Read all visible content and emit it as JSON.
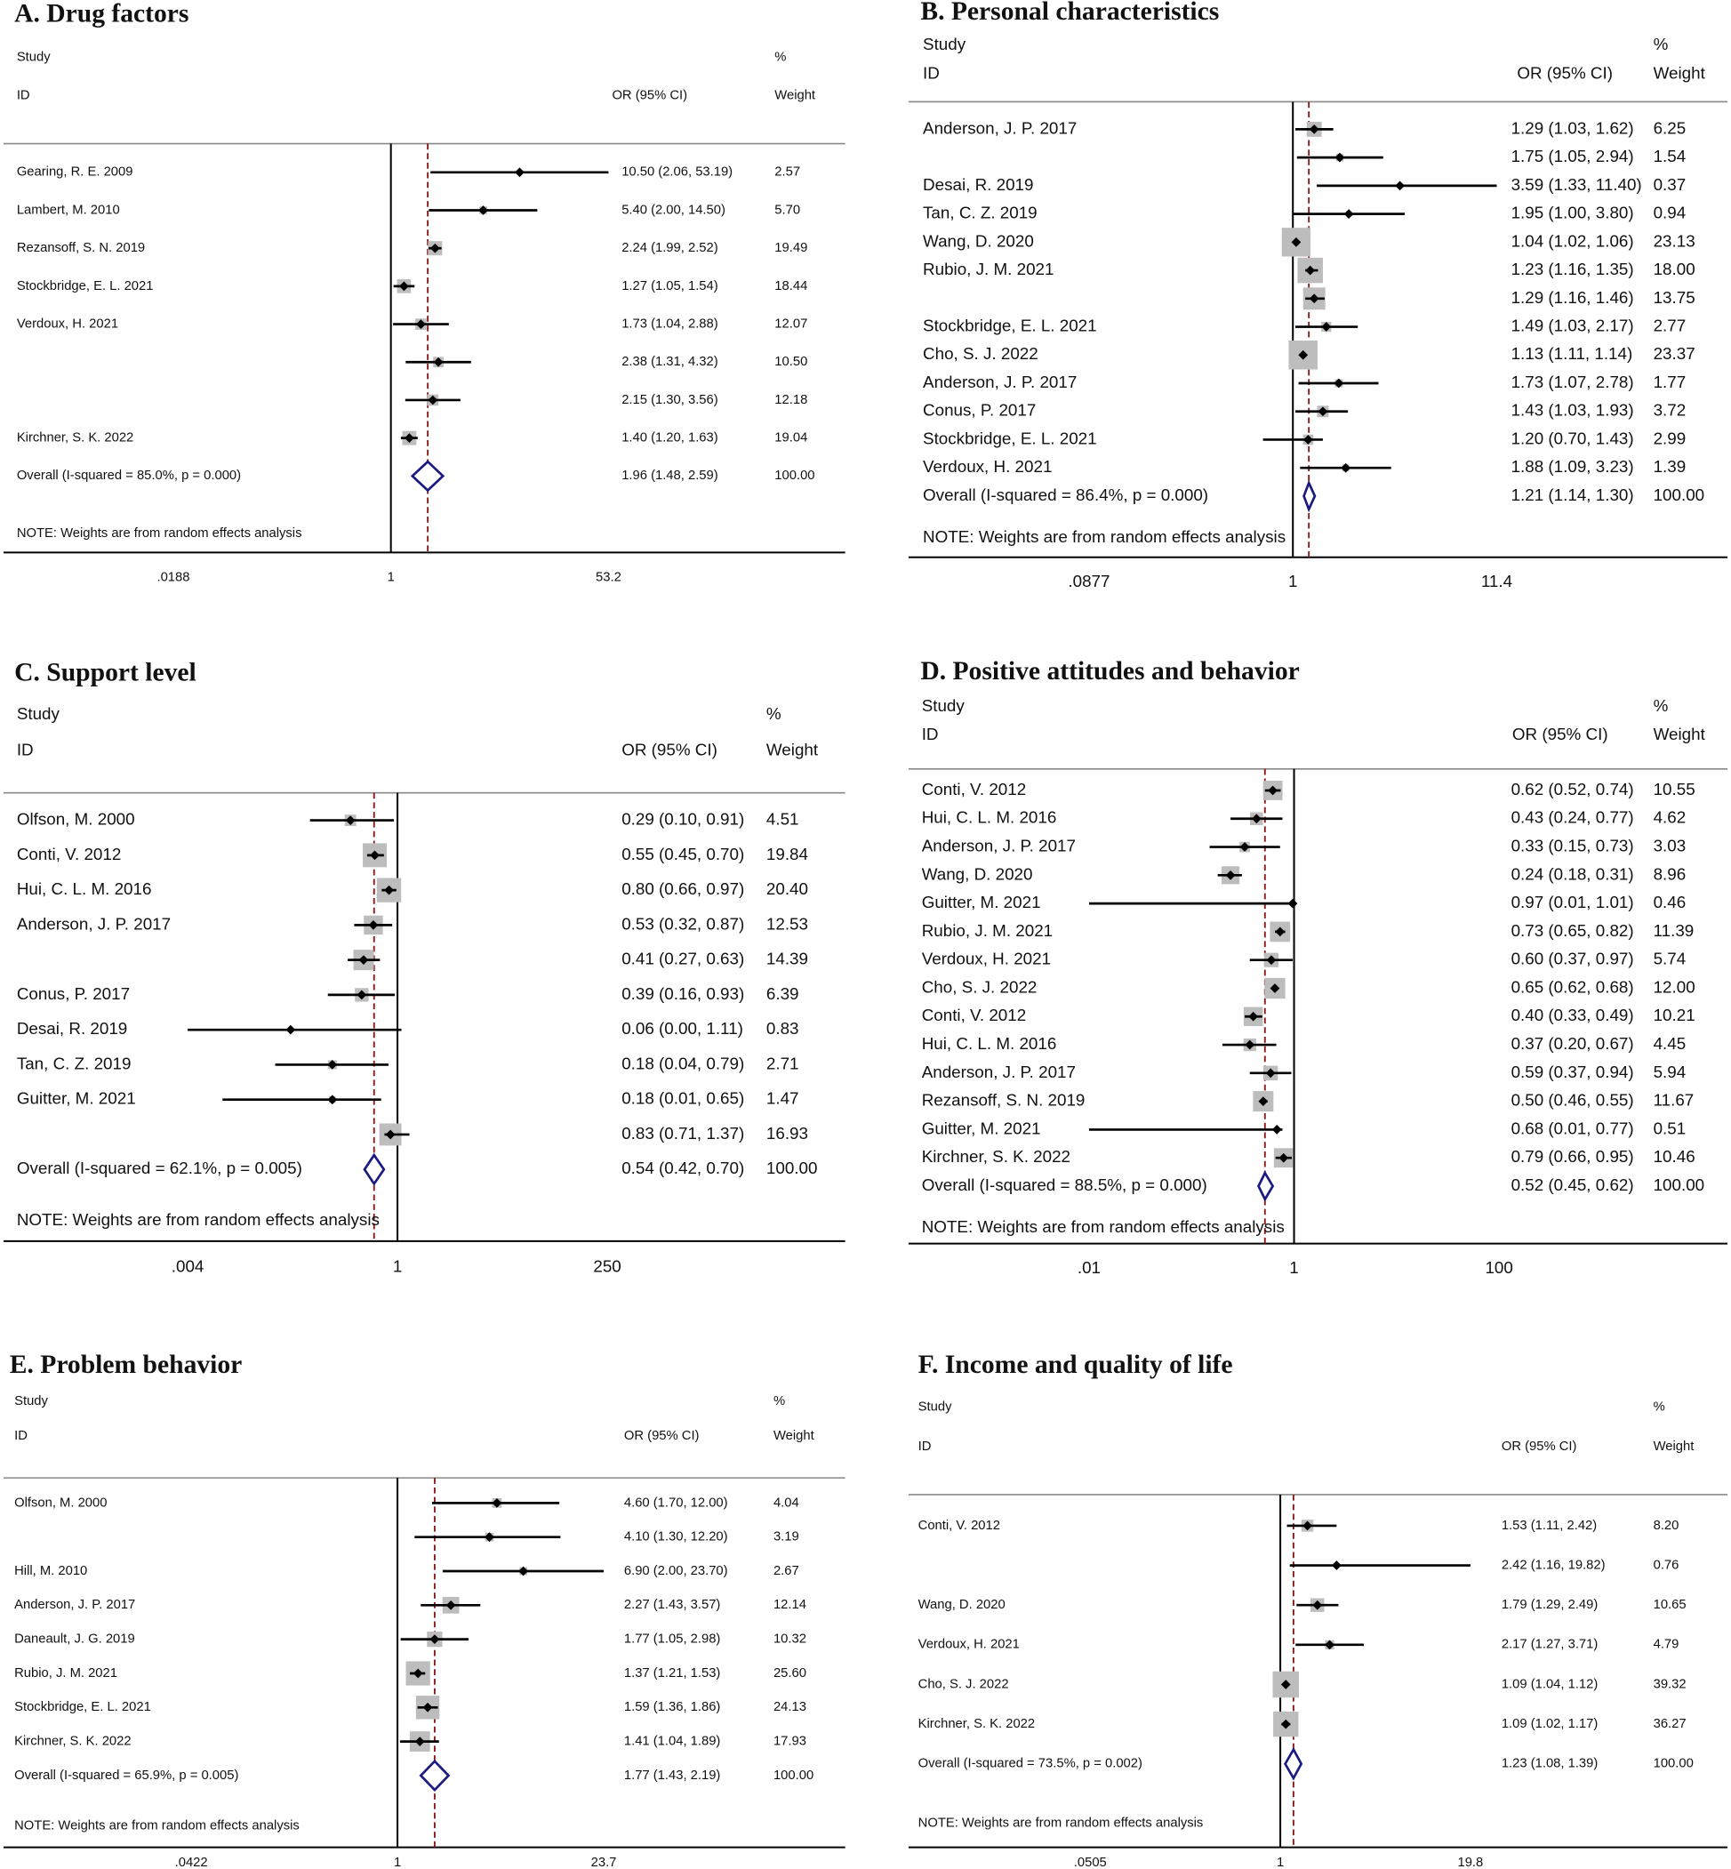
{
  "chart_data": [
    {
      "type": "forest",
      "title": "A. Drug factors",
      "log_scale": true,
      "study_header": "Study",
      "id_header": "ID",
      "ci_header": "OR (95% CI)",
      "pct_header": "%",
      "weight_header": "Weight",
      "studies": [
        "Gearing, R. E. 2009",
        "Lambert, M. 2010",
        "Rezansoff, S. N. 2019",
        "Stockbridge, E. L. 2021",
        "Verdoux, H. 2021",
        null,
        null,
        "Kirchner, S. K. 2022"
      ],
      "values": [
        10.5,
        5.4,
        2.24,
        1.27,
        1.73,
        2.38,
        2.15,
        1.4
      ],
      "lower": [
        2.06,
        2.0,
        1.99,
        1.05,
        1.04,
        1.31,
        1.3,
        1.2
      ],
      "upper": [
        53.19,
        14.5,
        2.52,
        1.54,
        2.88,
        4.32,
        3.56,
        1.63
      ],
      "weights": [
        2.57,
        5.7,
        19.49,
        18.44,
        12.07,
        10.5,
        12.18,
        19.04
      ],
      "ci_labels": [
        "10.50 (2.06, 53.19)",
        "5.40 (2.00, 14.50)",
        "2.24 (1.99, 2.52)",
        "1.27 (1.05, 1.54)",
        "1.73 (1.04, 2.88)",
        "2.38 (1.31, 4.32)",
        "2.15 (1.30, 3.56)",
        "1.40 (1.20, 1.63)"
      ],
      "weight_labels": [
        "2.57",
        "5.70",
        "19.49",
        "18.44",
        "12.07",
        "10.50",
        "12.18",
        "19.04"
      ],
      "overall": {
        "label": "Overall  (I-squared = 85.0%, p = 0.000)",
        "value": 1.96,
        "lower": 1.48,
        "upper": 2.59,
        "ci_label": "1.96 (1.48, 2.59)",
        "weight": 100,
        "weight_label": "100.00"
      },
      "note": "NOTE: Weights are from random effects analysis",
      "xlim": [
        0.0188,
        53.2
      ],
      "xticks": [
        {
          "value": 0.0188,
          "label": ".0188"
        },
        1,
        53.2
      ]
    },
    {
      "type": "forest",
      "title": "B. Personal characteristics",
      "log_scale": true,
      "study_header": "Study",
      "id_header": "ID",
      "ci_header": "OR (95% CI)",
      "pct_header": "%",
      "weight_header": "Weight",
      "studies": [
        "Anderson, J. P. 2017",
        null,
        "Desai, R. 2019",
        "Tan, C. Z. 2019",
        "Wang, D. 2020",
        "Rubio, J. M. 2021",
        null,
        "Stockbridge, E. L. 2021",
        "Cho, S. J. 2022",
        "Anderson, J. P. 2017",
        "Conus, P. 2017",
        "Stockbridge, E. L. 2021",
        "Verdoux, H. 2021"
      ],
      "values": [
        1.29,
        1.75,
        3.59,
        1.95,
        1.04,
        1.23,
        1.29,
        1.49,
        1.13,
        1.73,
        1.43,
        1.2,
        1.88
      ],
      "lower": [
        1.03,
        1.05,
        1.33,
        1.0,
        1.02,
        1.16,
        1.16,
        1.03,
        1.11,
        1.07,
        1.03,
        0.7,
        1.09
      ],
      "upper": [
        1.62,
        2.94,
        11.4,
        3.8,
        1.06,
        1.35,
        1.46,
        2.17,
        1.14,
        2.78,
        1.93,
        1.43,
        3.23
      ],
      "weights": [
        6.25,
        1.54,
        0.37,
        0.94,
        23.13,
        18.0,
        13.75,
        2.77,
        23.37,
        1.77,
        3.72,
        2.99,
        1.39
      ],
      "ci_labels": [
        "1.29 (1.03, 1.62)",
        "1.75 (1.05, 2.94)",
        "3.59 (1.33, 11.40)",
        "1.95 (1.00, 3.80)",
        "1.04 (1.02, 1.06)",
        "1.23 (1.16, 1.35)",
        "1.29 (1.16, 1.46)",
        "1.49 (1.03, 2.17)",
        "1.13 (1.11, 1.14)",
        "1.73 (1.07, 2.78)",
        "1.43 (1.03, 1.93)",
        "1.20 (0.70, 1.43)",
        "1.88 (1.09, 3.23)"
      ],
      "weight_labels": [
        "6.25",
        "1.54",
        "0.37",
        "0.94",
        "23.13",
        "18.00",
        "13.75",
        "2.77",
        "23.37",
        "1.77",
        "3.72",
        "2.99",
        "1.39"
      ],
      "overall": {
        "label": "Overall  (I-squared = 86.4%, p = 0.000)",
        "value": 1.21,
        "lower": 1.14,
        "upper": 1.3,
        "ci_label": "1.21 (1.14, 1.30)",
        "weight": 100,
        "weight_label": "100.00"
      },
      "note": "NOTE: Weights are from random effects analysis",
      "xlim": [
        0.0877,
        11.4
      ],
      "xticks": [
        {
          "value": 0.0877,
          "label": ".0877"
        },
        1,
        11.4
      ]
    },
    {
      "type": "forest",
      "title": "C. Support level",
      "log_scale": true,
      "study_header": "Study",
      "id_header": "ID",
      "ci_header": "OR (95% CI)",
      "pct_header": "%",
      "weight_header": "Weight",
      "studies": [
        "Olfson, M. 2000",
        "Conti, V. 2012",
        "Hui, C. L. M. 2016",
        "Anderson, J. P. 2017",
        null,
        "Conus, P. 2017",
        "Desai, R. 2019",
        "Tan, C. Z. 2019",
        "Guitter, M. 2021",
        null
      ],
      "values": [
        0.29,
        0.55,
        0.8,
        0.53,
        0.41,
        0.39,
        0.06,
        0.18,
        0.18,
        0.83
      ],
      "lower": [
        0.1,
        0.45,
        0.66,
        0.32,
        0.27,
        0.16,
        0.0,
        0.04,
        0.01,
        0.71
      ],
      "upper": [
        0.91,
        0.7,
        0.97,
        0.87,
        0.63,
        0.93,
        1.11,
        0.79,
        0.65,
        1.37
      ],
      "weights": [
        4.51,
        19.84,
        20.4,
        12.53,
        14.39,
        6.39,
        0.83,
        2.71,
        1.47,
        16.93
      ],
      "ci_labels": [
        "0.29 (0.10, 0.91)",
        "0.55 (0.45, 0.70)",
        "0.80 (0.66, 0.97)",
        "0.53 (0.32, 0.87)",
        "0.41 (0.27, 0.63)",
        "0.39 (0.16, 0.93)",
        "0.06 (0.00, 1.11)",
        "0.18 (0.04, 0.79)",
        "0.18 (0.01, 0.65)",
        "0.83 (0.71, 1.37)"
      ],
      "weight_labels": [
        "4.51",
        "19.84",
        "20.40",
        "12.53",
        "14.39",
        "6.39",
        "0.83",
        "2.71",
        "1.47",
        "16.93"
      ],
      "overall": {
        "label": "Overall  (I-squared = 62.1%, p = 0.005)",
        "value": 0.54,
        "lower": 0.42,
        "upper": 0.7,
        "ci_label": "0.54 (0.42, 0.70)",
        "weight": 100,
        "weight_label": "100.00"
      },
      "note": "NOTE: Weights are from random effects analysis",
      "xlim": [
        0.004,
        250
      ],
      "xticks": [
        {
          "value": 0.004,
          "label": ".004"
        },
        1,
        250
      ]
    },
    {
      "type": "forest",
      "title": "D. Positive attitudes and behavior",
      "log_scale": true,
      "study_header": "Study",
      "id_header": "ID",
      "ci_header": "OR (95% CI)",
      "pct_header": "%",
      "weight_header": "Weight",
      "studies": [
        "Conti, V. 2012",
        "Hui, C. L. M. 2016",
        "Anderson, J. P. 2017",
        "Wang, D. 2020",
        "Guitter, M. 2021",
        "Rubio, J. M. 2021",
        "Verdoux, H. 2021",
        "Cho, S. J. 2022",
        "Conti, V. 2012",
        "Hui, C. L. M. 2016",
        "Anderson, J. P. 2017",
        "Rezansoff, S. N. 2019",
        "Guitter, M. 2021",
        "Kirchner, S. K. 2022"
      ],
      "values": [
        0.62,
        0.43,
        0.33,
        0.24,
        0.97,
        0.73,
        0.6,
        0.65,
        0.4,
        0.37,
        0.59,
        0.5,
        0.68,
        0.79
      ],
      "lower": [
        0.52,
        0.24,
        0.15,
        0.18,
        0.01,
        0.65,
        0.37,
        0.62,
        0.33,
        0.2,
        0.37,
        0.46,
        0.01,
        0.66
      ],
      "upper": [
        0.74,
        0.77,
        0.73,
        0.31,
        1.01,
        0.82,
        0.97,
        0.68,
        0.49,
        0.67,
        0.94,
        0.55,
        0.77,
        0.95
      ],
      "weights": [
        10.55,
        4.62,
        3.03,
        8.96,
        0.46,
        11.39,
        5.74,
        12.0,
        10.21,
        4.45,
        5.94,
        11.67,
        0.51,
        10.46
      ],
      "ci_labels": [
        "0.62 (0.52, 0.74)",
        "0.43 (0.24, 0.77)",
        "0.33 (0.15, 0.73)",
        "0.24 (0.18, 0.31)",
        "0.97 (0.01, 1.01)",
        "0.73 (0.65, 0.82)",
        "0.60 (0.37, 0.97)",
        "0.65 (0.62, 0.68)",
        "0.40 (0.33, 0.49)",
        "0.37 (0.20, 0.67)",
        "0.59 (0.37, 0.94)",
        "0.50 (0.46, 0.55)",
        "0.68 (0.01, 0.77)",
        "0.79 (0.66, 0.95)"
      ],
      "weight_labels": [
        "10.55",
        "4.62",
        "3.03",
        "8.96",
        "0.46",
        "11.39",
        "5.74",
        "12.00",
        "10.21",
        "4.45",
        "5.94",
        "11.67",
        "0.51",
        "10.46"
      ],
      "overall": {
        "label": "Overall  (I-squared = 88.5%, p = 0.000)",
        "value": 0.52,
        "lower": 0.45,
        "upper": 0.62,
        "ci_label": "0.52 (0.45, 0.62)",
        "weight": 100,
        "weight_label": "100.00"
      },
      "note": "NOTE: Weights are from random effects analysis",
      "xlim": [
        0.01,
        100
      ],
      "xticks": [
        {
          "value": 0.01,
          "label": ".01"
        },
        1,
        100
      ]
    },
    {
      "type": "forest",
      "title": "E. Problem behavior",
      "log_scale": true,
      "study_header": "Study",
      "id_header": "ID",
      "ci_header": "OR (95% CI)",
      "pct_header": "%",
      "weight_header": "Weight",
      "studies": [
        "Olfson, M. 2000",
        null,
        "Hill, M. 2010",
        "Anderson, J. P. 2017",
        "Daneault, J. G. 2019",
        "Rubio, J. M. 2021",
        "Stockbridge, E. L. 2021",
        "Kirchner, S. K. 2022"
      ],
      "values": [
        4.6,
        4.1,
        6.9,
        2.27,
        1.77,
        1.37,
        1.59,
        1.41
      ],
      "lower": [
        1.7,
        1.3,
        2.0,
        1.43,
        1.05,
        1.21,
        1.36,
        1.04
      ],
      "upper": [
        12.0,
        12.2,
        23.7,
        3.57,
        2.98,
        1.53,
        1.86,
        1.89
      ],
      "weights": [
        4.04,
        3.19,
        2.67,
        12.14,
        10.32,
        25.6,
        24.13,
        17.93
      ],
      "ci_labels": [
        "4.60 (1.70, 12.00)",
        "4.10 (1.30, 12.20)",
        "6.90 (2.00, 23.70)",
        "2.27 (1.43, 3.57)",
        "1.77 (1.05, 2.98)",
        "1.37 (1.21, 1.53)",
        "1.59 (1.36, 1.86)",
        "1.41 (1.04, 1.89)"
      ],
      "weight_labels": [
        "4.04",
        "3.19",
        "2.67",
        "12.14",
        "10.32",
        "25.60",
        "24.13",
        "17.93"
      ],
      "overall": {
        "label": "Overall  (I-squared = 65.9%, p = 0.005)",
        "value": 1.77,
        "lower": 1.43,
        "upper": 2.19,
        "ci_label": "1.77 (1.43, 2.19)",
        "weight": 100,
        "weight_label": "100.00"
      },
      "note": "NOTE: Weights are from random effects analysis",
      "xlim": [
        0.0422,
        23.7
      ],
      "xticks": [
        {
          "value": 0.0422,
          "label": ".0422"
        },
        1,
        23.7
      ]
    },
    {
      "type": "forest",
      "title": "F. Income and quality of life",
      "log_scale": true,
      "study_header": "Study",
      "id_header": "ID",
      "ci_header": "OR (95% CI)",
      "pct_header": "%",
      "weight_header": "Weight",
      "studies": [
        "Conti, V. 2012",
        null,
        "Wang, D. 2020",
        "Verdoux, H. 2021",
        "Cho, S. J. 2022",
        "Kirchner, S. K. 2022"
      ],
      "values": [
        1.53,
        2.42,
        1.79,
        2.17,
        1.09,
        1.09
      ],
      "lower": [
        1.11,
        1.16,
        1.29,
        1.27,
        1.04,
        1.02
      ],
      "upper": [
        2.42,
        19.82,
        2.49,
        3.71,
        1.12,
        1.17
      ],
      "weights": [
        8.2,
        0.76,
        10.65,
        4.79,
        39.32,
        36.27
      ],
      "ci_labels": [
        "1.53 (1.11, 2.42)",
        "2.42 (1.16, 19.82)",
        "1.79 (1.29, 2.49)",
        "2.17 (1.27, 3.71)",
        "1.09 (1.04, 1.12)",
        "1.09 (1.02, 1.17)"
      ],
      "weight_labels": [
        "8.20",
        "0.76",
        "10.65",
        "4.79",
        "39.32",
        "36.27"
      ],
      "overall": {
        "label": "Overall  (I-squared = 73.5%, p = 0.002)",
        "value": 1.23,
        "lower": 1.08,
        "upper": 1.39,
        "ci_label": "1.23 (1.08, 1.39)",
        "weight": 100,
        "weight_label": "100.00"
      },
      "note": "NOTE: Weights are from random effects analysis",
      "xlim": [
        0.0505,
        19.8
      ],
      "xticks": [
        {
          "value": 0.0505,
          "label": ".0505"
        },
        1,
        19.8
      ]
    }
  ]
}
